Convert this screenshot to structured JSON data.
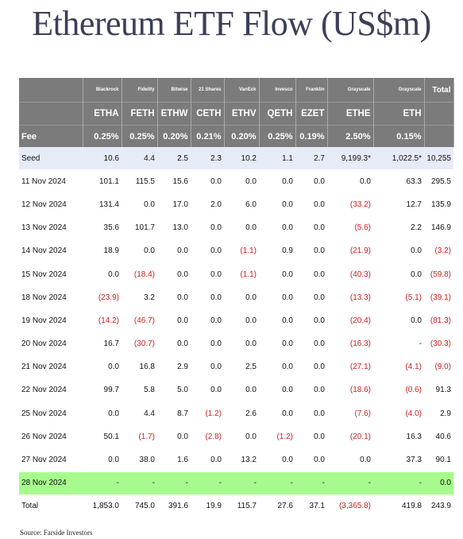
{
  "title": "Ethereum ETF Flow (US$m)",
  "source": "Source: Farside Investors",
  "colors": {
    "header_bg": "#7b7b7b",
    "seed_bg": "#e6ebf8",
    "highlight_bg": "#a6fb8c",
    "negative": "#cc1f1f",
    "title": "#3d3f58"
  },
  "issuers": [
    "Blackrock",
    "Fidelity",
    "Bitwise",
    "21 Shares",
    "VanEck",
    "Invesco",
    "Franklin",
    "Grayscale",
    "Grayscale",
    "Total"
  ],
  "tickers": [
    "ETHA",
    "FETH",
    "ETHW",
    "CETH",
    "ETHV",
    "QETH",
    "EZET",
    "ETHE",
    "ETH"
  ],
  "fee_label": "Fee",
  "fees": [
    "0.25%",
    "0.25%",
    "0.20%",
    "0.21%",
    "0.20%",
    "0.25%",
    "0.19%",
    "2.50%",
    "0.15%"
  ],
  "rows": [
    {
      "label": "Seed",
      "values": [
        "10.6",
        "4.4",
        "2.5",
        "2.3",
        "10.2",
        "1.1",
        "2.7",
        "9,199.3*",
        "1,022.5*",
        "10,255"
      ]
    },
    {
      "label": "11 Nov 2024",
      "values": [
        "101.1",
        "115.5",
        "15.6",
        "0.0",
        "0.0",
        "0.0",
        "0.0",
        "0.0",
        "63.3",
        "295.5"
      ]
    },
    {
      "label": "12 Nov 2024",
      "values": [
        "131.4",
        "0.0",
        "17.0",
        "2.0",
        "6.0",
        "0.0",
        "0.0",
        "(33.2)",
        "12.7",
        "135.9"
      ]
    },
    {
      "label": "13 Nov 2024",
      "values": [
        "35.6",
        "101.7",
        "13.0",
        "0.0",
        "0.0",
        "0.0",
        "0.0",
        "(5.6)",
        "2.2",
        "146.9"
      ]
    },
    {
      "label": "14 Nov 2024",
      "values": [
        "18.9",
        "0.0",
        "0.0",
        "0.0",
        "(1.1)",
        "0.9",
        "0.0",
        "(21.9)",
        "0.0",
        "(3.2)"
      ]
    },
    {
      "label": "15 Nov 2024",
      "values": [
        "0.0",
        "(18.4)",
        "0.0",
        "0.0",
        "(1.1)",
        "0.0",
        "0.0",
        "(40.3)",
        "0.0",
        "(59.8)"
      ]
    },
    {
      "label": "18 Nov 2024",
      "values": [
        "(23.9)",
        "3.2",
        "0.0",
        "0.0",
        "0.0",
        "0.0",
        "0.0",
        "(13.3)",
        "(5.1)",
        "(39.1)"
      ]
    },
    {
      "label": "19 Nov 2024",
      "values": [
        "(14.2)",
        "(46.7)",
        "0.0",
        "0.0",
        "0.0",
        "0.0",
        "0.0",
        "(20.4)",
        "0.0",
        "(81.3)"
      ]
    },
    {
      "label": "20 Nov 2024",
      "values": [
        "16.7",
        "(30.7)",
        "0.0",
        "0.0",
        "0.0",
        "0.0",
        "0.0",
        "(16.3)",
        "-",
        "(30.3)"
      ]
    },
    {
      "label": "21 Nov 2024",
      "values": [
        "0.0",
        "16.8",
        "2.9",
        "0.0",
        "2.5",
        "0.0",
        "0.0",
        "(27.1)",
        "(4.1)",
        "(9.0)"
      ]
    },
    {
      "label": "22 Nov 2024",
      "values": [
        "99.7",
        "5.8",
        "5.0",
        "0.0",
        "0.0",
        "0.0",
        "0.0",
        "(18.6)",
        "(0.6)",
        "91.3"
      ]
    },
    {
      "label": "25 Nov 2024",
      "values": [
        "0.0",
        "4.4",
        "8.7",
        "(1.2)",
        "2.6",
        "0.0",
        "0.0",
        "(7.6)",
        "(4.0)",
        "2.9"
      ]
    },
    {
      "label": "26 Nov 2024",
      "values": [
        "50.1",
        "(1.7)",
        "0.0",
        "(2.8)",
        "0.0",
        "(1.2)",
        "0.0",
        "(20.1)",
        "16.3",
        "40.6"
      ]
    },
    {
      "label": "27 Nov 2024",
      "values": [
        "0.0",
        "38.0",
        "1.6",
        "0.0",
        "13.2",
        "0.0",
        "0.0",
        "0.0",
        "37.3",
        "90.1"
      ]
    },
    {
      "label": "28 Nov 2024",
      "values": [
        "-",
        "-",
        "-",
        "-",
        "-",
        "-",
        "-",
        "-",
        "-",
        "0.0"
      ]
    },
    {
      "label": "Total",
      "values": [
        "1,853.0",
        "745.0",
        "391.6",
        "19.9",
        "115.7",
        "27.6",
        "37.1",
        "(3,365.8)",
        "419.8",
        "243.9"
      ]
    }
  ]
}
